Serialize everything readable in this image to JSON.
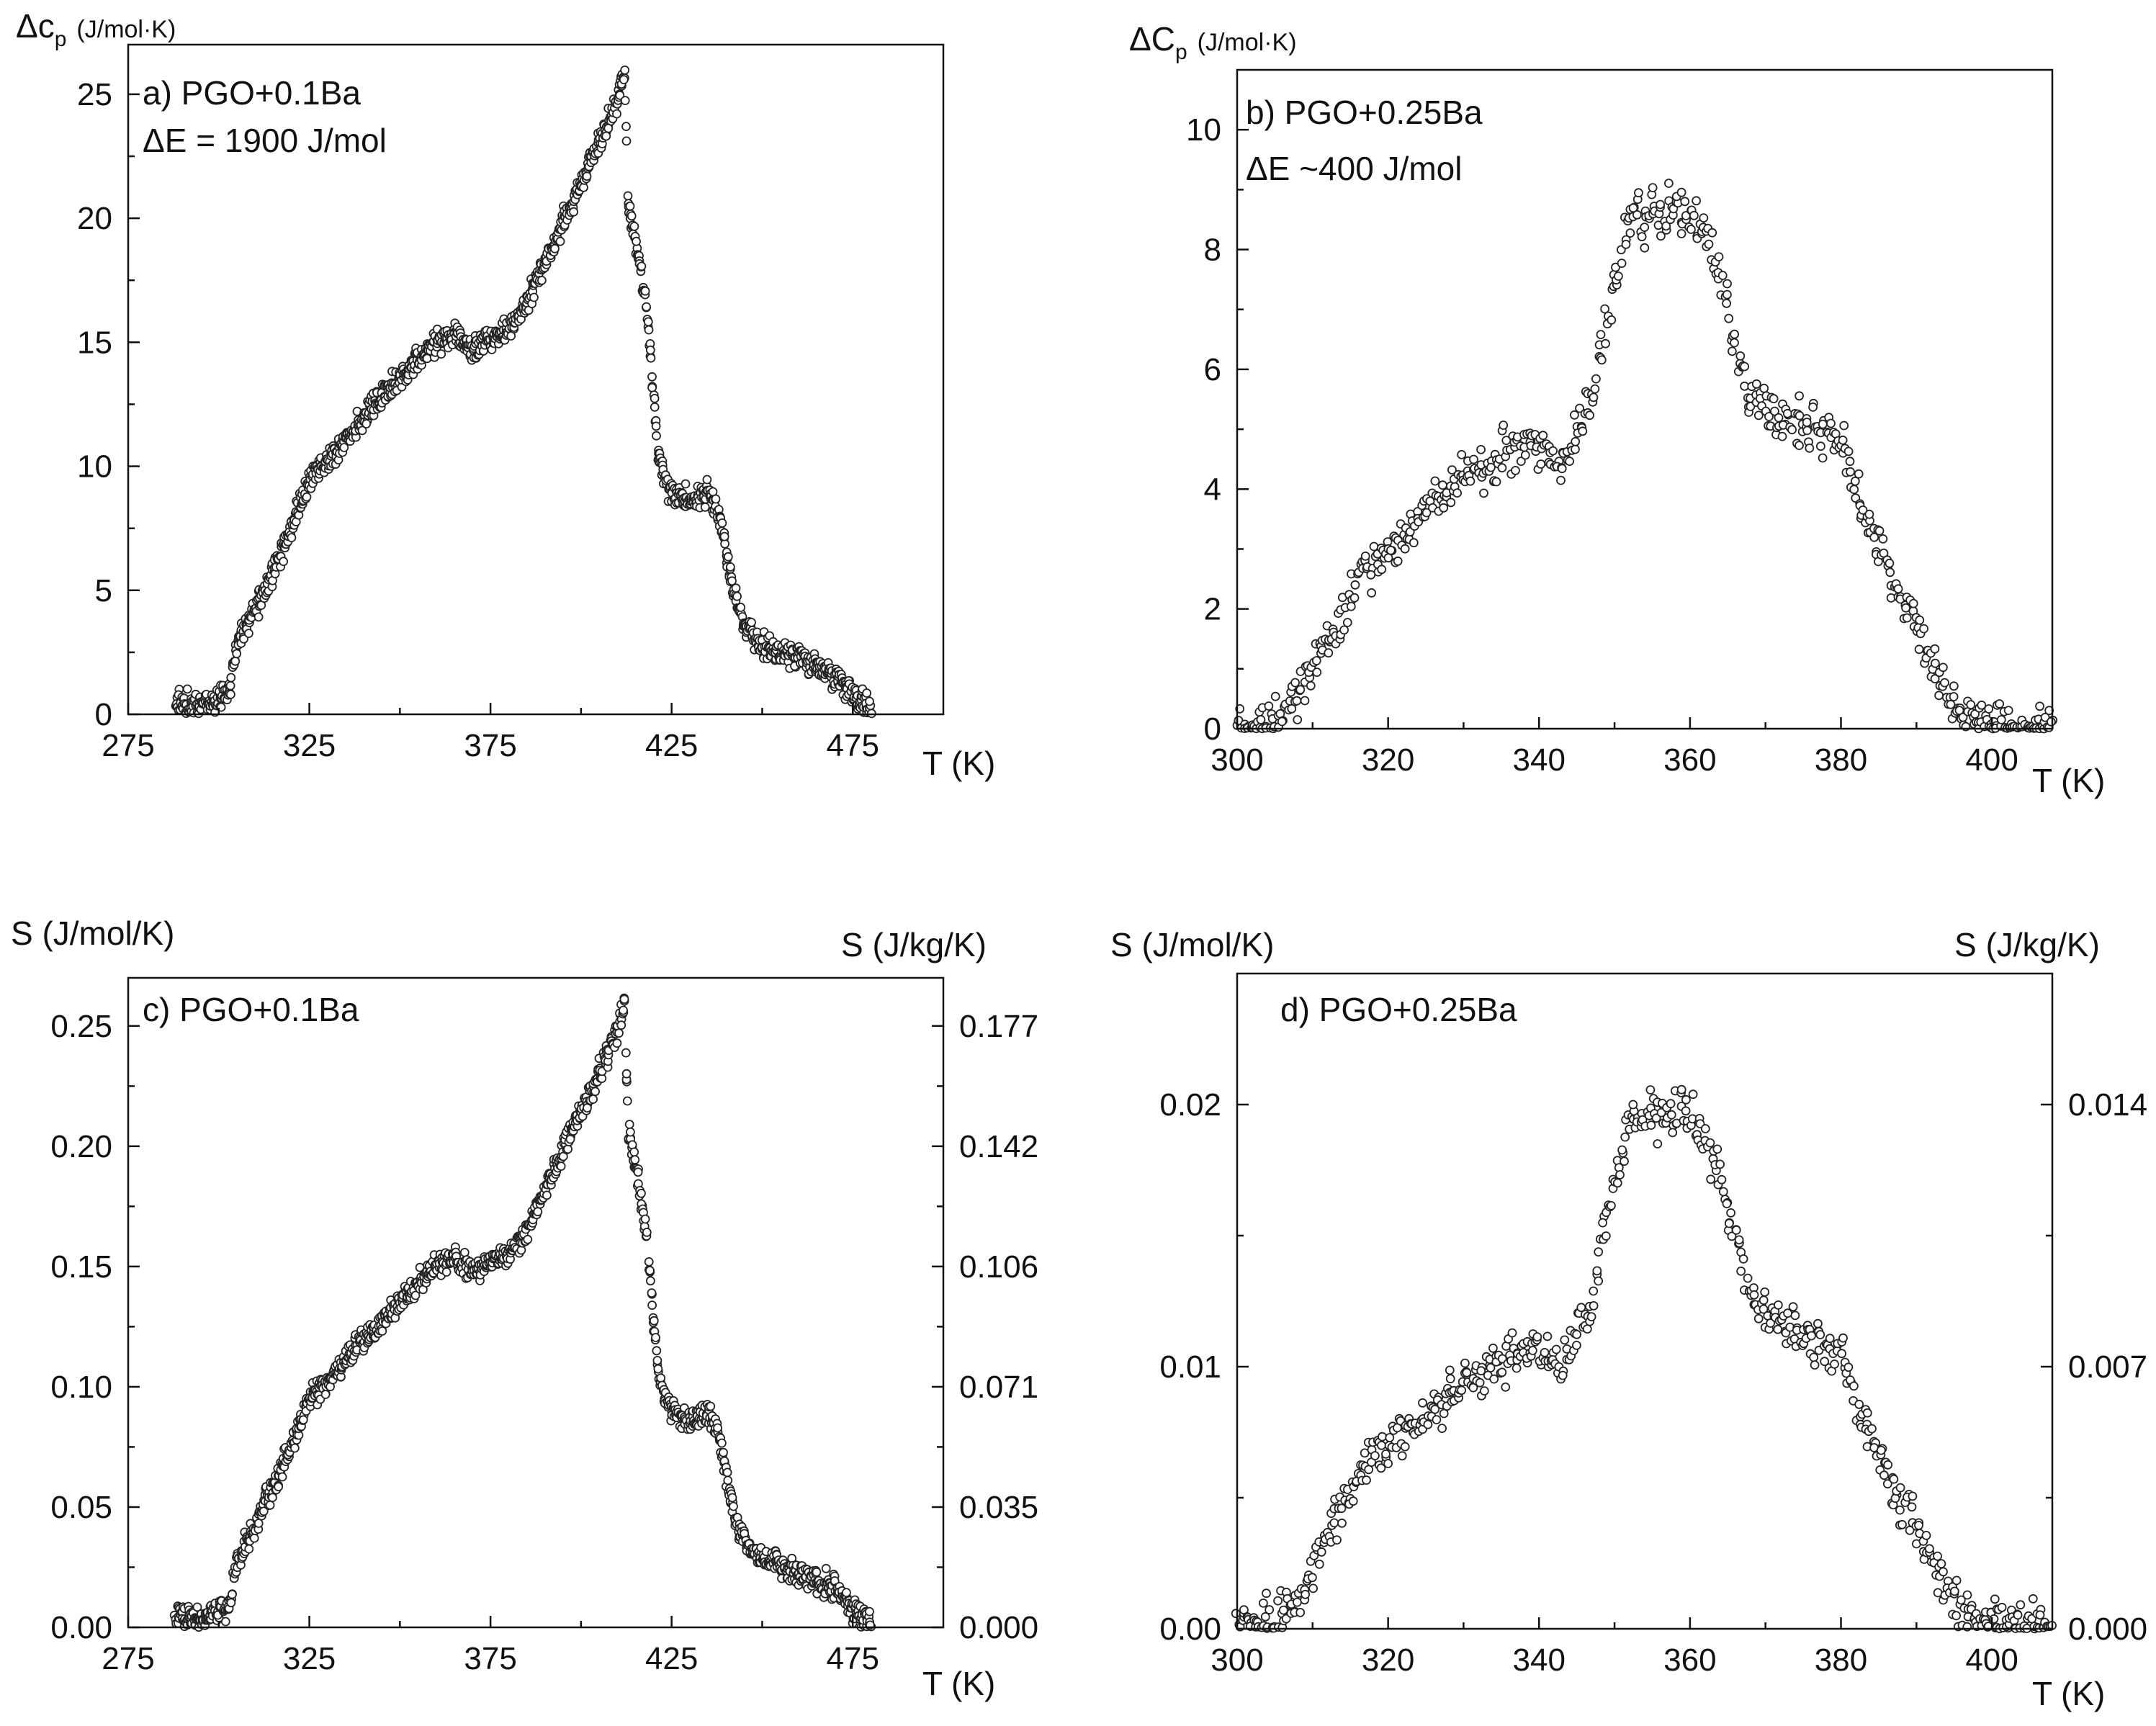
{
  "chart_data": [
    {
      "id": "a",
      "type": "scatter",
      "panel_label": "a) PGO+0.1Ba",
      "annotation": "ΔE = 1900 J/mol",
      "ylabel_main": "Δc",
      "ylabel_sub": "p",
      "ylabel_units": "(J/mol·K)",
      "xlabel": "T (K)",
      "xlim": [
        275,
        500
      ],
      "ylim": [
        0,
        27
      ],
      "x_ticks": [
        275,
        325,
        375,
        425,
        475
      ],
      "x_tick_labels": [
        "275",
        "325",
        "375",
        "425",
        "475"
      ],
      "y_ticks": [
        0,
        5,
        10,
        15,
        20,
        25
      ],
      "y_tick_labels": [
        "0",
        "5",
        "10",
        "15",
        "20",
        "25"
      ],
      "anchors_x": [
        288,
        296,
        300,
        303,
        305,
        310,
        320,
        325,
        330,
        335,
        340,
        350,
        360,
        365,
        370,
        375,
        380,
        385,
        390,
        395,
        400,
        405,
        410,
        412,
        413,
        414,
        418,
        420,
        421,
        423,
        425,
        430,
        435,
        438,
        440,
        442,
        445,
        450,
        460,
        470,
        475,
        480
      ],
      "anchors_y": [
        0.5,
        0.3,
        0.7,
        1.0,
        2.8,
        4.2,
        7.5,
        9.5,
        10.2,
        11.0,
        12.0,
        13.5,
        15.0,
        15.3,
        14.8,
        15.2,
        15.5,
        16.5,
        18.2,
        19.8,
        21.5,
        23.0,
        24.8,
        26.0,
        20.5,
        20.0,
        16.5,
        13.0,
        11.0,
        9.5,
        9.0,
        8.5,
        9.0,
        8.0,
        6.5,
        5.0,
        3.5,
        2.8,
        2.3,
        1.6,
        0.8,
        0.2
      ]
    },
    {
      "id": "b",
      "type": "scatter",
      "panel_label": "b) PGO+0.25Ba",
      "annotation": "ΔE ~400 J/mol",
      "ylabel_main": "ΔC",
      "ylabel_sub": "p",
      "ylabel_units": "(J/mol·K)",
      "xlabel": "T (K)",
      "xlim": [
        300,
        408
      ],
      "ylim": [
        0,
        11
      ],
      "x_ticks": [
        300,
        320,
        340,
        360,
        380,
        400
      ],
      "x_tick_labels": [
        "300",
        "320",
        "340",
        "360",
        "380",
        "400"
      ],
      "y_ticks": [
        0,
        2,
        4,
        6,
        8,
        10
      ],
      "y_tick_labels": [
        "0",
        "2",
        "4",
        "6",
        "8",
        "10"
      ],
      "anchors_x": [
        300,
        305,
        308,
        312,
        316,
        320,
        325,
        330,
        335,
        340,
        343,
        347,
        350,
        352,
        355,
        360,
        363,
        366,
        368,
        372,
        376,
        380,
        383,
        387,
        390,
        393,
        396,
        400,
        405,
        408
      ],
      "anchors_y": [
        0.0,
        0.1,
        0.5,
        1.5,
        2.5,
        3.0,
        3.6,
        4.2,
        4.6,
        4.8,
        4.3,
        5.5,
        7.5,
        8.5,
        8.6,
        8.7,
        8.0,
        6.5,
        5.5,
        5.2,
        5.0,
        4.8,
        3.5,
        2.5,
        1.8,
        0.8,
        0.3,
        0.1,
        0.0,
        0.0
      ]
    },
    {
      "id": "c",
      "type": "scatter",
      "panel_label": "c) PGO+0.1Ba",
      "ylabel": "S (J/mol/K)",
      "ylabel_right": "S (J/kg/K)",
      "xlabel": "T (K)",
      "xlim": [
        275,
        500
      ],
      "ylim": [
        0,
        0.27
      ],
      "x_ticks": [
        275,
        325,
        375,
        425,
        475
      ],
      "x_tick_labels": [
        "275",
        "325",
        "375",
        "425",
        "475"
      ],
      "y_ticks": [
        0,
        0.05,
        0.1,
        0.15,
        0.2,
        0.25
      ],
      "y_tick_labels": [
        "0.00",
        "0.05",
        "0.10",
        "0.15",
        "0.20",
        "0.25"
      ],
      "y_right_ticks": [
        0,
        0.05,
        0.1,
        0.15,
        0.2,
        0.25
      ],
      "y_right_tick_labels": [
        "0.000",
        "0.035",
        "0.071",
        "0.106",
        "0.142",
        "0.177"
      ],
      "anchors_x": [
        288,
        296,
        300,
        303,
        305,
        310,
        320,
        325,
        330,
        335,
        340,
        350,
        360,
        365,
        370,
        375,
        380,
        385,
        390,
        395,
        400,
        405,
        410,
        412,
        413,
        414,
        418,
        420,
        421,
        423,
        425,
        430,
        435,
        438,
        440,
        442,
        445,
        450,
        460,
        470,
        475,
        480
      ],
      "anchors_y": [
        0.005,
        0.003,
        0.007,
        0.01,
        0.028,
        0.042,
        0.075,
        0.095,
        0.102,
        0.11,
        0.12,
        0.135,
        0.15,
        0.153,
        0.148,
        0.152,
        0.155,
        0.165,
        0.182,
        0.198,
        0.215,
        0.23,
        0.248,
        0.26,
        0.205,
        0.2,
        0.165,
        0.13,
        0.11,
        0.095,
        0.09,
        0.085,
        0.09,
        0.08,
        0.065,
        0.05,
        0.035,
        0.028,
        0.023,
        0.016,
        0.008,
        0.002
      ]
    },
    {
      "id": "d",
      "type": "scatter",
      "panel_label": "d) PGO+0.25Ba",
      "ylabel": "S (J/mol/K)",
      "ylabel_right": "S (J/kg/K)",
      "xlabel": "T (K)",
      "xlim": [
        300,
        408
      ],
      "ylim": [
        0,
        0.025
      ],
      "x_ticks": [
        300,
        320,
        340,
        360,
        380,
        400
      ],
      "x_tick_labels": [
        "300",
        "320",
        "340",
        "360",
        "380",
        "400"
      ],
      "y_ticks": [
        0,
        0.01,
        0.02
      ],
      "y_tick_labels": [
        "0.00",
        "0.01",
        "0.02"
      ],
      "y_right_ticks": [
        0,
        0.01,
        0.02
      ],
      "y_right_tick_labels": [
        "0.000",
        "0.007",
        "0.014"
      ],
      "anchors_x": [
        300,
        305,
        308,
        312,
        316,
        320,
        325,
        330,
        335,
        340,
        343,
        347,
        350,
        352,
        355,
        360,
        363,
        366,
        368,
        372,
        376,
        380,
        383,
        387,
        390,
        393,
        396,
        400,
        405,
        408
      ],
      "anchors_y": [
        0.0,
        0.0002,
        0.0012,
        0.0035,
        0.006,
        0.007,
        0.0082,
        0.0095,
        0.0102,
        0.0108,
        0.0098,
        0.0125,
        0.017,
        0.0193,
        0.0196,
        0.0198,
        0.018,
        0.015,
        0.0125,
        0.0118,
        0.011,
        0.0105,
        0.0078,
        0.0055,
        0.004,
        0.0018,
        0.0006,
        0.0002,
        0.0,
        0.0
      ]
    }
  ]
}
